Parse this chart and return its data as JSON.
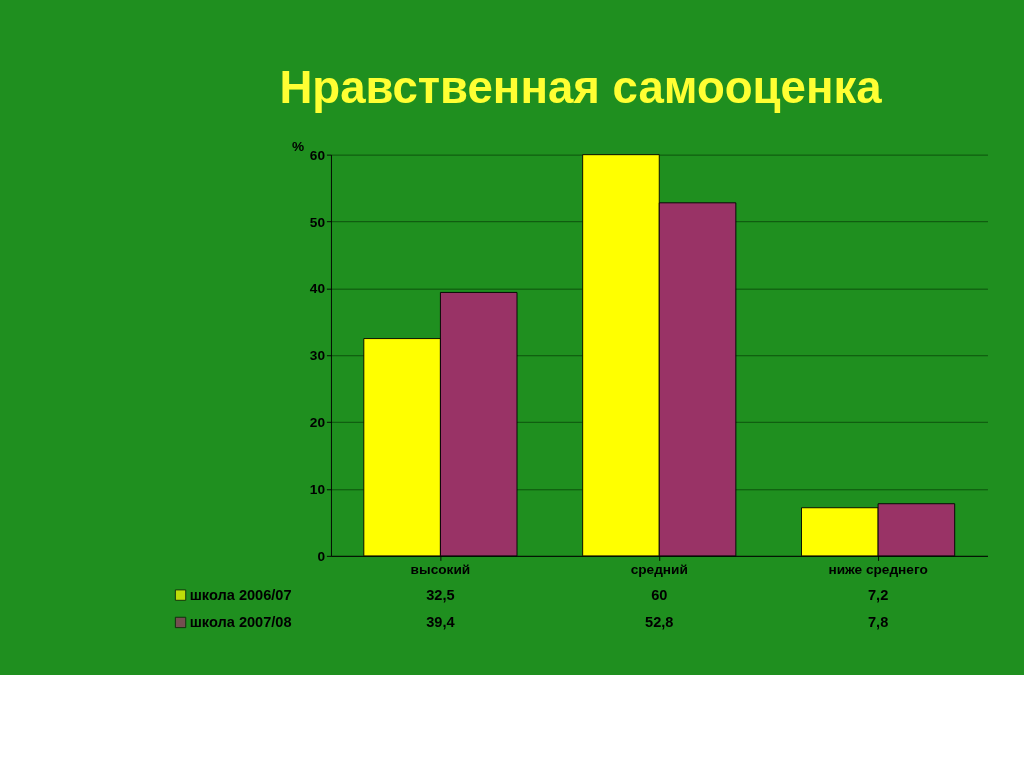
{
  "chart_data": {
    "type": "bar",
    "title": "Нравственная самооценка",
    "ylabel": "%",
    "categories": [
      "высокий",
      "средний",
      "ниже среднего"
    ],
    "series": [
      {
        "name": "школа 2006/07",
        "color": "#ffff00",
        "values": [
          32.5,
          60,
          7.2
        ],
        "value_labels": [
          "32,5",
          "60",
          "7,2"
        ]
      },
      {
        "name": "школа 2007/08",
        "color": "#993366",
        "values": [
          39.4,
          52.8,
          7.8
        ],
        "value_labels": [
          "39,4",
          "52,8",
          "7,8"
        ]
      }
    ],
    "ylim": [
      0,
      60
    ],
    "yticks": [
      0,
      10,
      20,
      30,
      40,
      50,
      60
    ],
    "grid": "y",
    "legend": "bottom left"
  }
}
